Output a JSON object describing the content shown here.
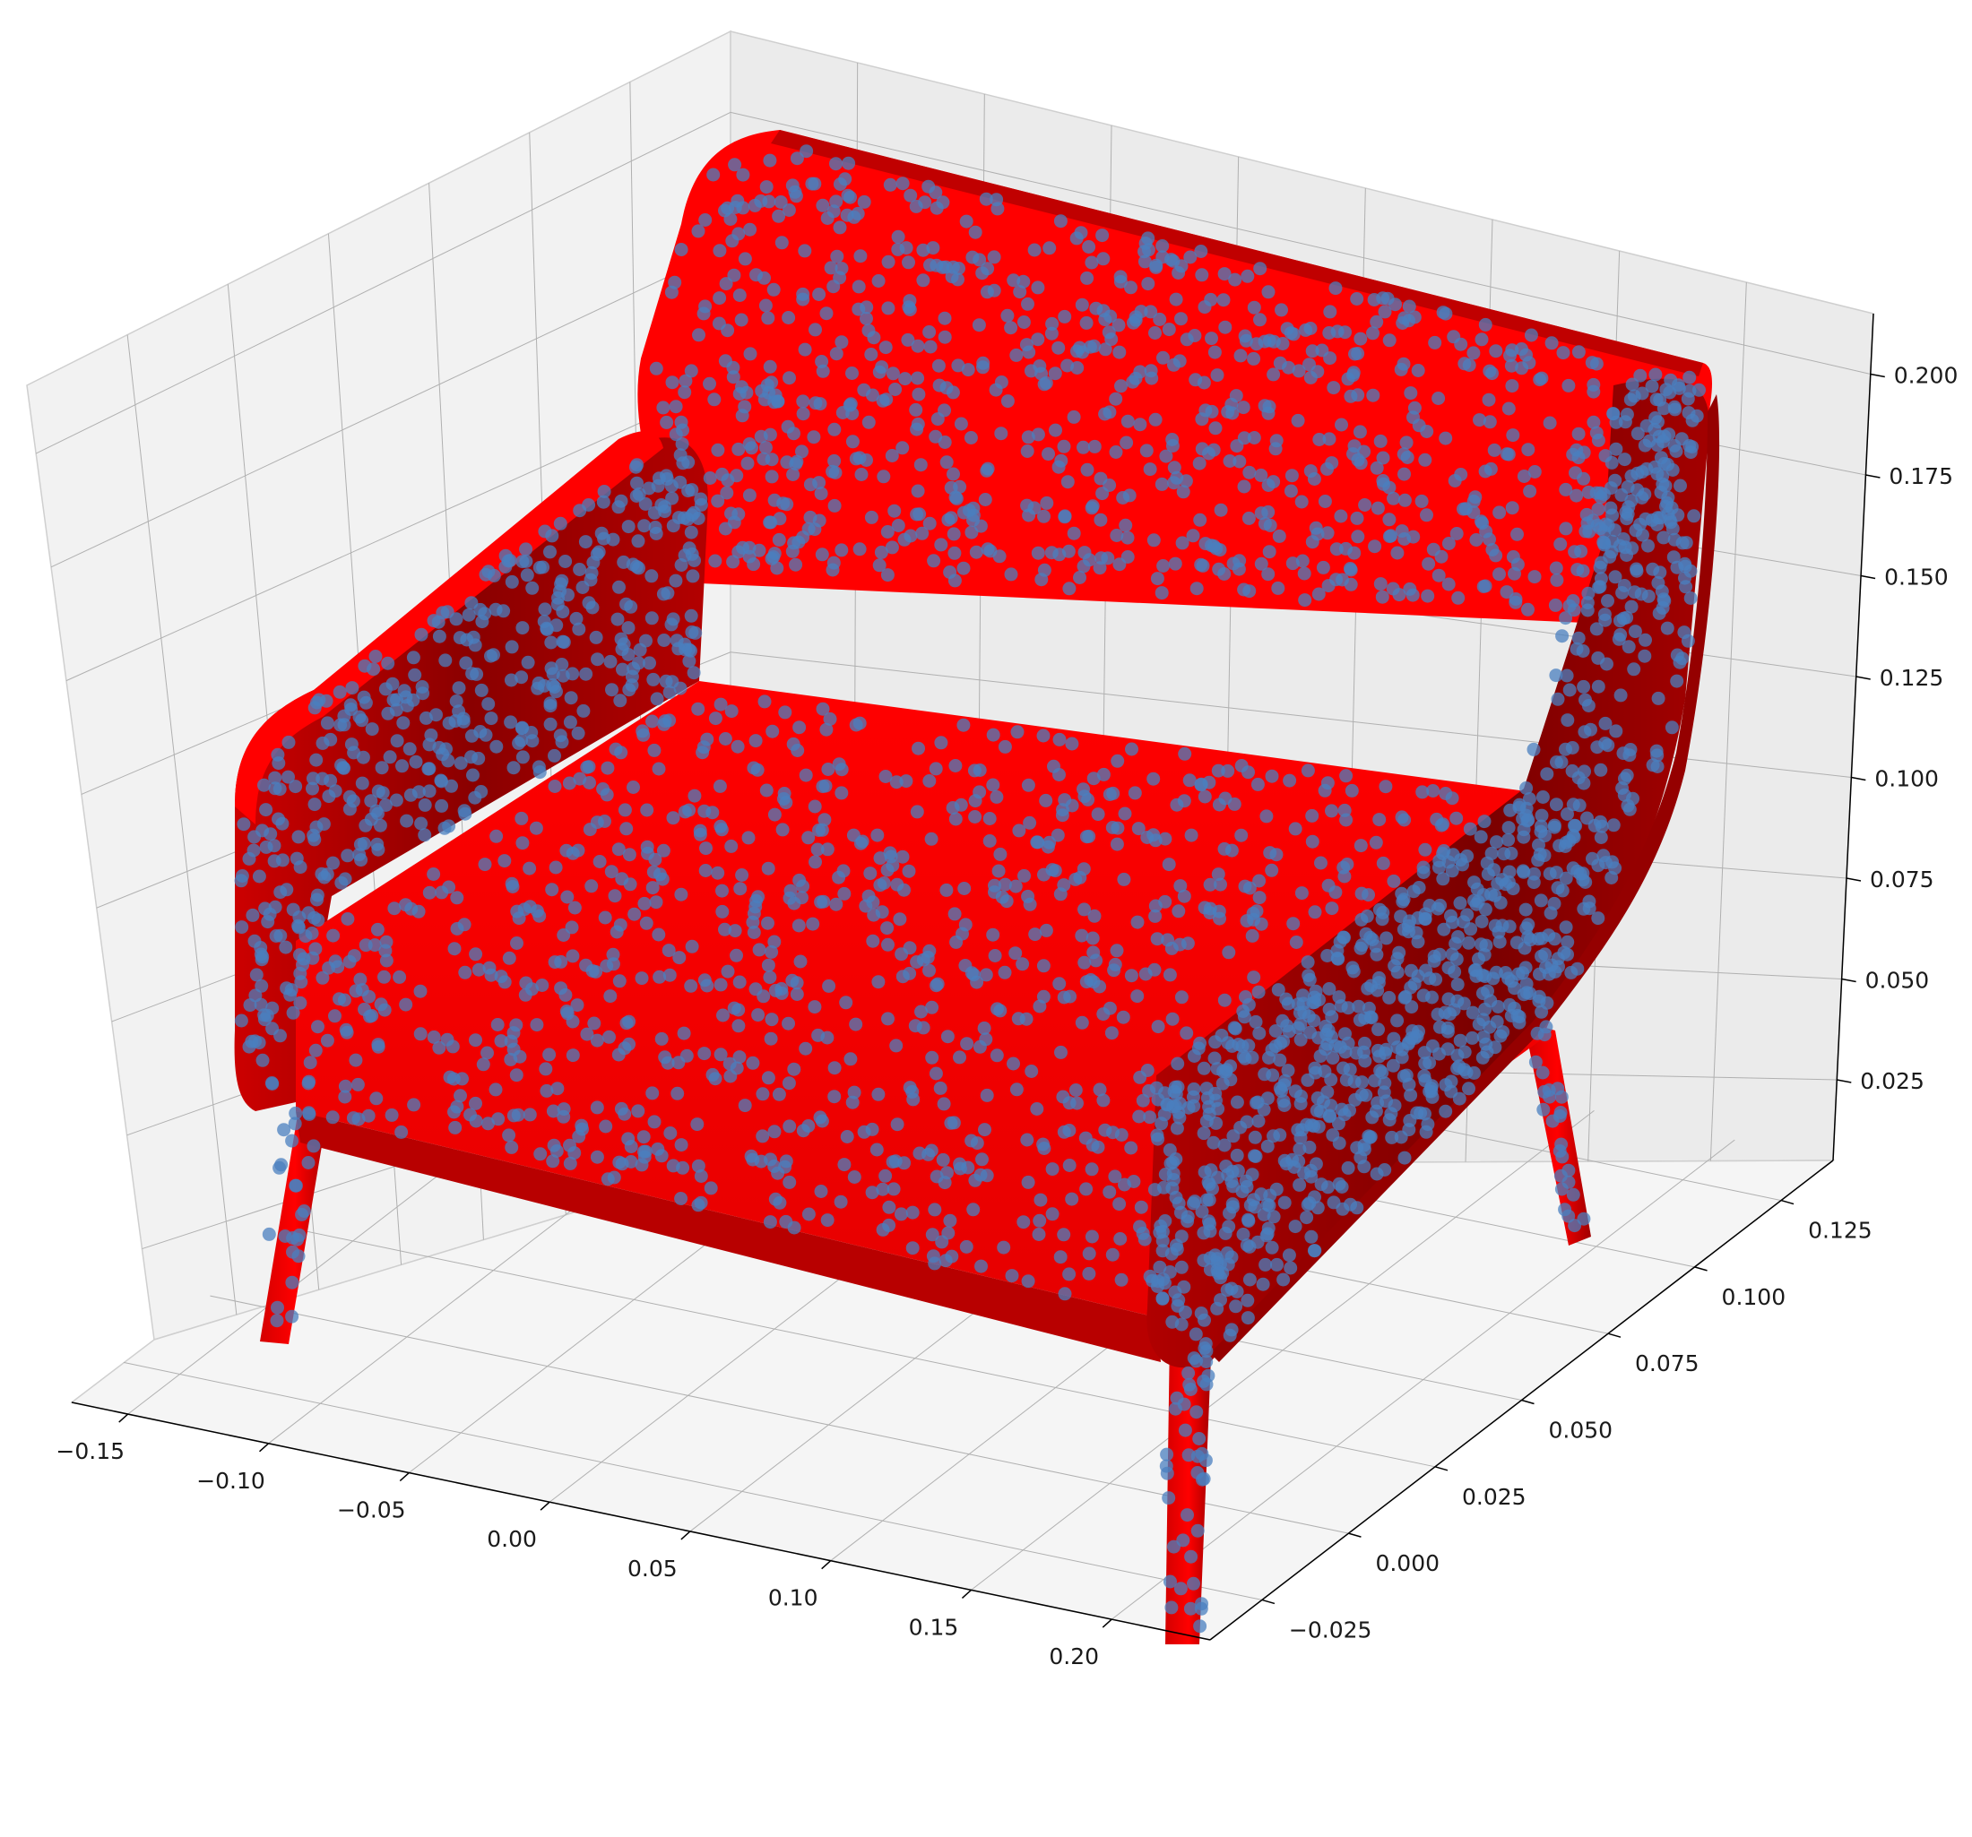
{
  "chart_data": {
    "type": "scatter",
    "projection": "3d",
    "description_visible": "red surface mesh (armchair) overlaid with blue point cloud samples",
    "axes": {
      "x": {
        "ticks": [
          -0.15,
          -0.1,
          -0.05,
          0.0,
          0.05,
          0.1,
          0.15,
          0.2
        ],
        "tick_labels": [
          "−0.15",
          "−0.10",
          "−0.05",
          "0.00",
          "0.05",
          "0.10",
          "0.15",
          "0.20"
        ],
        "lim": [
          -0.17,
          0.235
        ]
      },
      "y": {
        "ticks": [
          -0.025,
          0.0,
          0.025,
          0.05,
          0.075,
          0.1,
          0.125
        ],
        "tick_labels": [
          "−0.025",
          "0.000",
          "0.025",
          "0.050",
          "0.075",
          "0.100",
          "0.125"
        ],
        "lim": [
          -0.04,
          0.14
        ]
      },
      "z": {
        "ticks": [
          0.025,
          0.05,
          0.075,
          0.1,
          0.125,
          0.15,
          0.175,
          0.2
        ],
        "tick_labels": [
          "0.025",
          "0.050",
          "0.075",
          "0.100",
          "0.125",
          "0.150",
          "0.175",
          "0.200"
        ],
        "lim": [
          0.005,
          0.215
        ]
      }
    },
    "grid": true,
    "series": [
      {
        "kind": "surface",
        "color": "#ff0000",
        "shade_color": "#8b0000"
      },
      {
        "kind": "points",
        "color": "#4a7fbf",
        "alpha": 0.75,
        "approx_count": 2500
      }
    ]
  },
  "colors": {
    "pane": "#f2f2f2",
    "pane_dark": "#e6e6e6",
    "grid": "#b0b0b0",
    "axis": "#000000"
  }
}
